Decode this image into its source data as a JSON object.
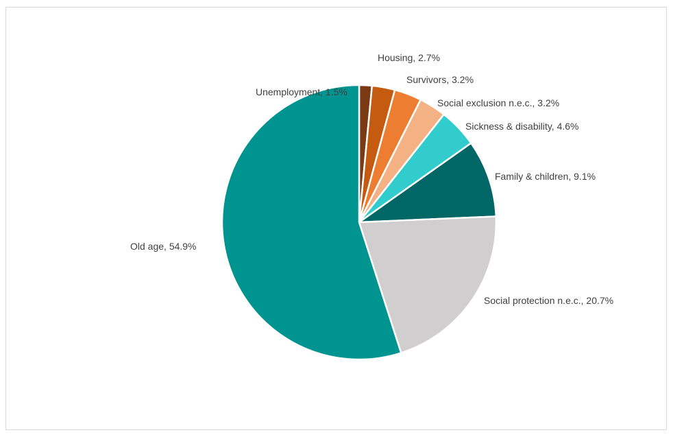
{
  "chart_data": {
    "type": "pie",
    "title": "",
    "slices": [
      {
        "label": "Unemployment",
        "value": 1.5,
        "display": "Unemployment, 1.5%",
        "color": "#7a3a13"
      },
      {
        "label": "Housing",
        "value": 2.7,
        "display": "Housing, 2.7%",
        "color": "#c55a11"
      },
      {
        "label": "Survivors",
        "value": 3.2,
        "display": "Survivors, 3.2%",
        "color": "#ed7d31"
      },
      {
        "label": "Social exclusion n.e.c.",
        "value": 3.2,
        "display": "Social exclusion n.e.c., 3.2%",
        "color": "#f4b183"
      },
      {
        "label": "Sickness & disability",
        "value": 4.6,
        "display": "Sickness & disability, 4.6%",
        "color": "#33cccc"
      },
      {
        "label": "Family & children",
        "value": 9.1,
        "display": "Family & children, 9.1%",
        "color": "#006666"
      },
      {
        "label": "Social protection n.e.c.",
        "value": 20.7,
        "display": "Social protection n.e.c., 20.7%",
        "color": "#d0cece"
      },
      {
        "label": "Old age",
        "value": 54.9,
        "display": "Old age, 54.9%",
        "color": "#009490"
      }
    ],
    "start_angle": "12 o'clock",
    "direction": "clockwise",
    "legend": "none"
  }
}
